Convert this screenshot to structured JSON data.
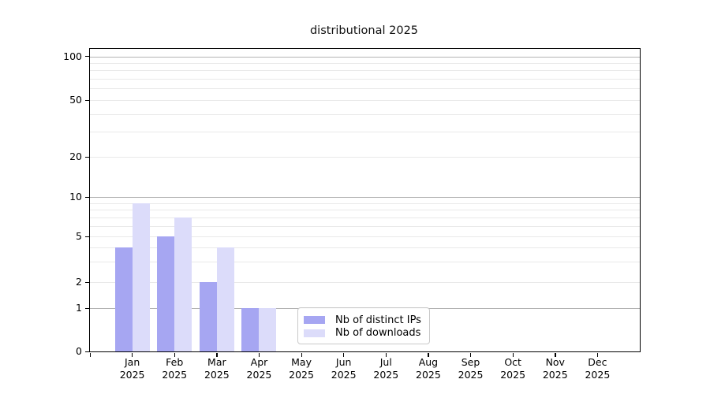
{
  "chart_data": {
    "type": "bar",
    "title": "distributional 2025",
    "categories": [
      "Jan 2025",
      "Feb 2025",
      "Mar 2025",
      "Apr 2025",
      "May 2025",
      "Jun 2025",
      "Jul 2025",
      "Aug 2025",
      "Sep 2025",
      "Oct 2025",
      "Nov 2025",
      "Dec 2025"
    ],
    "category_display": {
      "months": [
        "Jan",
        "Feb",
        "Mar",
        "Apr",
        "May",
        "Jun",
        "Jul",
        "Aug",
        "Sep",
        "Oct",
        "Nov",
        "Dec"
      ],
      "year": "2025"
    },
    "series": [
      {
        "name": "Nb of distinct IPs",
        "color": "#a6a6f2",
        "values": [
          4,
          5,
          2,
          1,
          0,
          0,
          0,
          0,
          0,
          0,
          0,
          0
        ]
      },
      {
        "name": "Nb of downloads",
        "color": "#dcdcfa",
        "values": [
          9,
          7,
          4,
          1,
          0,
          0,
          0,
          0,
          0,
          0,
          0,
          0
        ]
      }
    ],
    "y_axis": {
      "scale": "symlog (log above 1, linear 0-1)",
      "tick_labels": [
        "100",
        "50",
        "20",
        "10",
        "5",
        "2",
        "1",
        "0"
      ],
      "tick_values": [
        100,
        50,
        20,
        10,
        5,
        2,
        1,
        0
      ],
      "major_gridline_values": [
        1,
        10,
        100
      ],
      "minor_gridline_values": [
        2,
        3,
        4,
        5,
        6,
        7,
        8,
        9,
        20,
        30,
        40,
        50,
        60,
        70,
        80,
        90
      ],
      "top_value": 113
    },
    "grid": true,
    "legend_position": "lower center (inside plot)",
    "colors": {
      "major_grid": "#b3b3b3",
      "minor_grid": "#e9e9e9",
      "axis": "#000000",
      "background": "#ffffff"
    }
  }
}
